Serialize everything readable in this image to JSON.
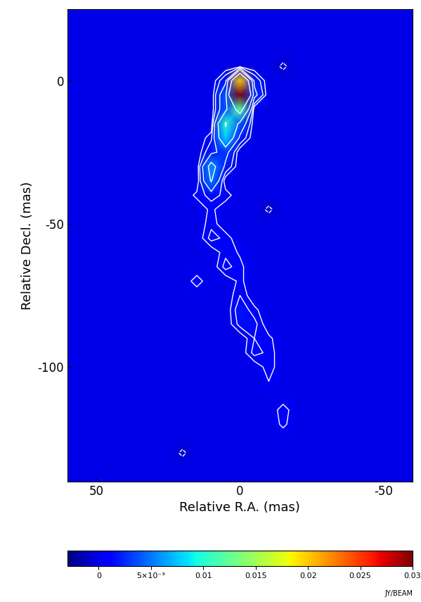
{
  "chart_data": {
    "type": "heatmap",
    "xlabel": "Relative R.A. (mas)",
    "ylabel": "Relative Decl. (mas)",
    "xlim": [
      60,
      -60
    ],
    "ylim": [
      -140,
      25
    ],
    "xticks": [
      50,
      0,
      -50
    ],
    "yticks": [
      0,
      -50,
      -100
    ],
    "x": [
      60,
      55,
      50,
      45,
      40,
      35,
      30,
      25,
      20,
      15,
      10,
      5,
      0,
      -5,
      -10,
      -15,
      -20,
      -25,
      -30,
      -35,
      -40,
      -45,
      -50,
      -55,
      -60
    ],
    "y": [
      25,
      20,
      15,
      10,
      5,
      0,
      -5,
      -10,
      -15,
      -20,
      -25,
      -30,
      -35,
      -40,
      -45,
      -50,
      -55,
      -60,
      -65,
      -70,
      -75,
      -80,
      -85,
      -90,
      -95,
      -100,
      -105,
      -110,
      -115,
      -120,
      -125,
      -130,
      -135,
      -140
    ],
    "cells": [
      [
        0,
        0,
        0,
        0,
        0,
        0,
        0,
        0,
        0,
        0,
        0,
        0,
        0,
        0,
        0,
        0,
        0,
        0,
        0,
        0,
        0,
        0,
        0,
        0,
        0
      ],
      [
        0,
        0,
        0,
        0,
        0,
        0,
        0,
        0,
        0,
        0,
        0,
        0,
        0,
        0,
        0,
        0,
        0,
        0,
        0,
        0,
        0,
        0,
        0,
        0,
        0
      ],
      [
        0,
        0,
        0,
        0,
        0,
        0,
        0,
        0,
        0,
        0,
        0,
        0,
        0,
        0,
        0,
        0,
        0,
        0,
        0,
        0,
        0,
        0,
        0,
        0,
        0
      ],
      [
        0,
        0,
        0,
        0,
        0,
        0,
        0,
        0,
        0,
        0,
        0,
        0,
        0,
        0,
        0,
        0,
        0,
        0,
        0,
        0,
        0,
        0,
        0,
        0,
        0
      ],
      [
        0,
        0,
        0,
        0,
        0,
        0,
        0,
        0,
        0,
        0,
        0,
        0,
        0,
        0,
        0,
        -0.0008,
        0,
        0,
        0,
        0,
        0,
        0,
        0,
        0,
        0
      ],
      [
        0,
        0,
        0,
        0,
        0,
        0,
        0,
        0,
        0,
        0,
        0,
        0.002,
        0.02,
        0.002,
        0,
        0,
        0,
        0,
        0,
        0,
        0,
        0,
        0,
        0,
        0
      ],
      [
        0,
        0,
        0,
        0,
        0,
        0,
        0,
        0,
        0,
        0,
        0,
        0.004,
        0.03,
        0.003,
        0,
        0,
        0,
        0,
        0,
        0,
        0,
        0,
        0,
        0,
        0
      ],
      [
        0,
        0,
        0,
        0,
        0,
        0,
        0,
        0,
        0,
        0,
        0,
        0.004,
        0.012,
        0,
        0,
        0,
        0,
        0,
        0,
        0,
        0,
        0,
        0,
        0,
        0
      ],
      [
        0,
        0,
        0,
        0,
        0,
        0,
        0,
        0,
        0,
        0,
        0,
        0.01,
        0.004,
        0,
        0,
        0,
        0,
        0,
        0,
        0,
        0,
        0,
        0,
        0,
        0
      ],
      [
        0,
        0,
        0,
        0,
        0,
        0,
        0,
        0,
        0,
        0,
        0.001,
        0.008,
        0.002,
        0,
        0,
        0,
        0,
        0,
        0,
        0,
        0,
        0,
        0,
        0,
        0
      ],
      [
        0,
        0,
        0,
        0,
        0,
        0,
        0,
        0,
        0,
        0,
        0.002,
        0.003,
        0,
        0,
        0,
        0,
        0,
        0,
        0,
        0,
        0,
        0,
        0,
        0,
        0
      ],
      [
        0,
        0,
        0,
        0,
        0,
        0,
        0,
        0,
        0,
        0,
        0.006,
        0.002,
        0,
        0,
        0,
        0,
        0,
        0,
        0,
        0,
        0,
        0,
        0,
        0,
        0
      ],
      [
        0,
        0,
        0,
        0,
        0,
        0,
        0,
        0,
        0,
        0,
        0.005,
        0,
        0,
        0,
        0,
        0,
        0,
        0,
        0,
        0,
        0,
        0,
        0,
        0,
        0
      ],
      [
        0,
        0,
        0,
        0,
        0,
        0,
        0,
        0,
        0,
        0.0008,
        0.0015,
        0.001,
        0,
        0,
        0,
        0,
        0,
        0,
        0,
        0,
        0,
        0,
        0,
        0,
        0
      ],
      [
        0,
        0,
        0,
        0,
        0,
        0,
        0,
        0,
        0,
        0,
        0.0008,
        0,
        0,
        0,
        -0.0008,
        0,
        0,
        0,
        0,
        0,
        0,
        0,
        0,
        0,
        0
      ],
      [
        0,
        0,
        0,
        0,
        0,
        0,
        0,
        0,
        0,
        0,
        0.001,
        0,
        0,
        0,
        0,
        0,
        0,
        0,
        0,
        0,
        0,
        0,
        0,
        0,
        0
      ],
      [
        0,
        0,
        0,
        0,
        0,
        0,
        0,
        0,
        0,
        0,
        0.0015,
        0.001,
        0,
        0,
        0,
        0,
        0,
        0,
        0,
        0,
        0,
        0,
        0,
        0,
        0
      ],
      [
        0,
        0,
        0,
        0,
        0,
        0,
        0,
        0,
        0,
        0,
        0,
        0.001,
        0.0005,
        0,
        0,
        0,
        0,
        0,
        0,
        0,
        0,
        0,
        0,
        0,
        0
      ],
      [
        0,
        0,
        0,
        0,
        0,
        0,
        0,
        0,
        0,
        0,
        0,
        0.0015,
        0.0008,
        0,
        0,
        0,
        0,
        0,
        0,
        0,
        0,
        0,
        0,
        0,
        0
      ],
      [
        0,
        0,
        0,
        0,
        0,
        0,
        0,
        0,
        0,
        0.001,
        0,
        0,
        0.0008,
        0,
        0,
        0,
        0,
        0,
        0,
        0,
        0,
        0,
        0,
        0,
        0
      ],
      [
        0,
        0,
        0,
        0,
        0,
        0,
        0,
        0,
        0,
        0,
        0,
        0,
        0.0012,
        0,
        0,
        0,
        0,
        0,
        0,
        0,
        0,
        0,
        0,
        0,
        0
      ],
      [
        0,
        0,
        0,
        0,
        0,
        0,
        0,
        0,
        0,
        0,
        0,
        0,
        0.0018,
        0.0008,
        0,
        0,
        0,
        0,
        0,
        0,
        0,
        0,
        0,
        0,
        0
      ],
      [
        0,
        0,
        0,
        0,
        0,
        0,
        0,
        0,
        0,
        0,
        0,
        0,
        0.0015,
        0.0015,
        0,
        0,
        0,
        0,
        0,
        0,
        0,
        0,
        0,
        0,
        0
      ],
      [
        0,
        0,
        0,
        0,
        0,
        0,
        0,
        0,
        0,
        0,
        0,
        0,
        0,
        0.0012,
        0.0008,
        0,
        0,
        0,
        0,
        0,
        0,
        0,
        0,
        0,
        0
      ],
      [
        0,
        0,
        0,
        0,
        0,
        0,
        0,
        0,
        0,
        0,
        0,
        0,
        0,
        0.0015,
        0.001,
        0,
        0,
        0,
        0,
        0,
        0,
        0,
        0,
        0,
        0
      ],
      [
        0,
        0,
        0,
        0,
        0,
        0,
        0,
        0,
        0,
        0,
        0,
        0,
        0,
        0,
        0.001,
        0,
        0,
        0,
        0,
        0,
        0,
        0,
        0,
        0,
        0
      ],
      [
        0,
        0,
        0,
        0,
        0,
        0,
        0,
        0,
        0,
        0,
        0,
        0,
        0,
        0,
        0.0006,
        0,
        0,
        0,
        0,
        0,
        0,
        0,
        0,
        0,
        0
      ],
      [
        0,
        0,
        0,
        0,
        0,
        0,
        0,
        0,
        0,
        0,
        0,
        0,
        0,
        0,
        0,
        0,
        0,
        0,
        0,
        0,
        0,
        0,
        0,
        0,
        0
      ],
      [
        0,
        0,
        0,
        0,
        0,
        0,
        0,
        0,
        0,
        0,
        0,
        0,
        0,
        0,
        0,
        0.001,
        0,
        0,
        0,
        0,
        0,
        0,
        0,
        0,
        0
      ],
      [
        0,
        0,
        0,
        0,
        0,
        0,
        0,
        0,
        0,
        0,
        0,
        0,
        0,
        0,
        0,
        0.0008,
        0,
        0,
        0,
        0,
        0,
        0,
        0,
        0,
        0
      ],
      [
        0,
        0,
        0,
        0,
        0,
        0,
        0,
        0,
        0,
        0,
        0,
        0,
        0,
        0,
        0,
        0,
        0,
        0,
        0,
        0,
        0,
        0,
        0,
        0,
        0
      ],
      [
        0,
        0,
        0,
        0,
        0,
        0,
        0,
        0,
        -0.0008,
        0,
        0,
        0,
        0,
        0,
        0,
        0,
        0,
        0,
        0,
        0,
        0,
        0,
        0,
        0,
        0
      ],
      [
        0,
        0,
        0,
        0,
        0,
        0,
        0,
        0,
        0,
        0,
        0,
        0,
        0,
        0,
        0,
        0,
        0,
        0,
        0,
        0,
        0,
        0,
        0,
        0,
        0
      ],
      [
        0,
        0,
        0,
        0,
        0,
        0,
        0,
        0,
        0,
        0,
        0,
        0,
        0,
        0,
        0,
        0,
        0,
        0,
        0,
        0,
        0,
        0,
        0,
        0,
        0
      ]
    ],
    "contour_levels": [
      -0.0006,
      0.0006,
      0.0012,
      0.0024,
      0.0048,
      0.0096
    ],
    "colorbar_label": "JY/BEAM",
    "colorbar_lim": [
      -0.003,
      0.03
    ],
    "colorbar_ticks": [
      {
        "value": 0,
        "label": "0"
      },
      {
        "value": 0.005,
        "label": "5×10⁻³"
      },
      {
        "value": 0.01,
        "label": "0.01"
      },
      {
        "value": 0.015,
        "label": "0.015"
      },
      {
        "value": 0.02,
        "label": "0.02"
      },
      {
        "value": 0.025,
        "label": "0.025"
      },
      {
        "value": 0.03,
        "label": "0.03"
      }
    ]
  }
}
